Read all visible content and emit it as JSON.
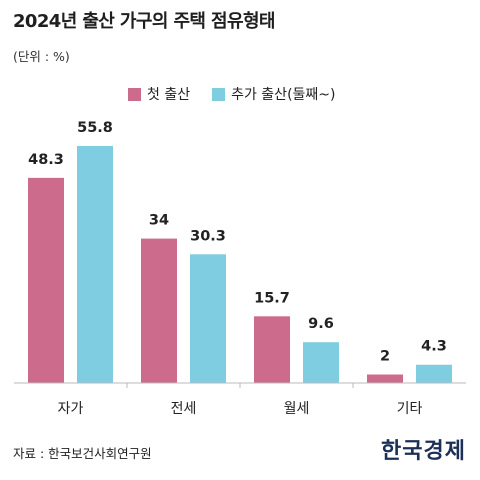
{
  "title": "2024년 출산 가구의 주택 점유형태",
  "unit_label": "(단위 : %)",
  "source": "자료 : 한국보건사회연구원",
  "logo": "한국경제",
  "colors": {
    "first_birth": "#cc6b8b",
    "additional_birth": "#7ecde0",
    "axis": "#bbbbbb",
    "label": "#222222"
  },
  "chart_data": {
    "type": "bar",
    "title": "2024년 출산 가구의 주택 점유형태",
    "categories": [
      "자가",
      "전세",
      "월세",
      "기타"
    ],
    "series": [
      {
        "name": "첫 출산",
        "values": [
          48.3,
          34,
          15.7,
          2
        ],
        "labels": [
          "48.3",
          "34",
          "15.7",
          "2"
        ]
      },
      {
        "name": "추가 출산(둘째~)",
        "values": [
          55.8,
          30.3,
          9.6,
          4.3
        ],
        "labels": [
          "55.8",
          "30.3",
          "9.6",
          "4.3"
        ]
      }
    ],
    "ylabel": "",
    "xlabel": "",
    "ylim": [
      0,
      60
    ],
    "grid": false,
    "legend_position": "top-center",
    "data_labels": true
  }
}
